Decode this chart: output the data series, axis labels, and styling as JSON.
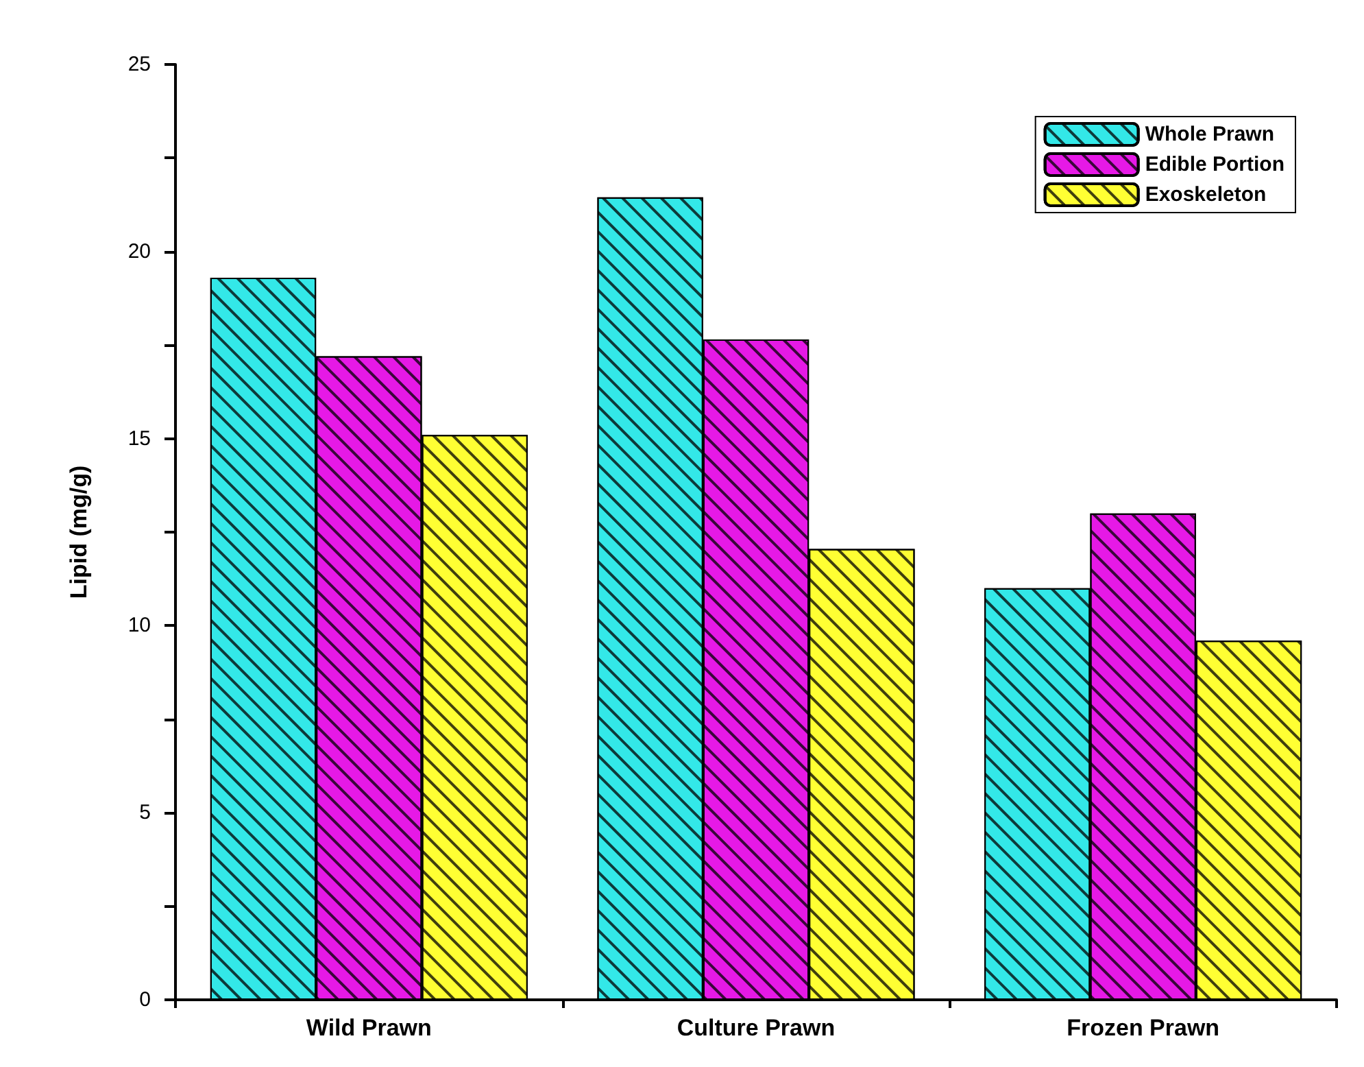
{
  "chart_data": {
    "type": "bar",
    "ylabel": "Lipid (mg/g)",
    "categories": [
      "Wild Prawn",
      "Culture Prawn",
      "Frozen Prawn"
    ],
    "series": [
      {
        "name": "Whole Prawn",
        "color": "#33e8e8",
        "values": [
          19.3,
          21.45,
          11.0
        ]
      },
      {
        "name": "Edible Portion",
        "color": "#e619e6",
        "values": [
          17.2,
          17.65,
          13.0
        ]
      },
      {
        "name": "Exoskeleton",
        "color": "#ffff33",
        "values": [
          15.1,
          12.05,
          9.6
        ]
      }
    ],
    "ylim": [
      0,
      25
    ],
    "yticks": [
      0,
      5,
      10,
      15,
      20,
      25
    ],
    "grid": false,
    "legend": "top right"
  }
}
